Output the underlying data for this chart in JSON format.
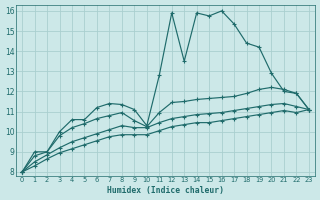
{
  "xlabel": "Humidex (Indice chaleur)",
  "ylabel": "",
  "xlim": [
    -0.5,
    23.5
  ],
  "ylim": [
    7.8,
    16.3
  ],
  "xtick_labels": [
    "0",
    "1",
    "2",
    "3",
    "4",
    "5",
    "6",
    "7",
    "8",
    "9",
    "10",
    "11",
    "12",
    "13",
    "14",
    "15",
    "16",
    "17",
    "18",
    "19",
    "20",
    "21",
    "22",
    "23"
  ],
  "yticks": [
    8,
    9,
    10,
    11,
    12,
    13,
    14,
    15,
    16
  ],
  "bg_color": "#cce8e8",
  "grid_color": "#aacfcf",
  "line_color": "#1f6b6b",
  "line1_x": [
    0,
    1,
    2,
    3,
    4,
    5,
    6,
    7,
    8,
    9,
    10,
    11,
    12,
    13,
    14,
    15,
    16,
    17,
    18,
    19,
    20,
    21,
    22,
    23
  ],
  "line1_y": [
    8.0,
    9.0,
    9.0,
    10.0,
    10.6,
    10.6,
    11.2,
    11.4,
    11.35,
    11.1,
    10.3,
    12.8,
    15.9,
    13.5,
    15.9,
    15.75,
    16.0,
    15.35,
    14.4,
    14.2,
    12.9,
    12.0,
    11.9,
    11.1
  ],
  "line2_x": [
    0,
    1,
    2,
    3,
    4,
    5,
    6,
    7,
    8,
    9,
    10,
    11,
    12,
    13,
    14,
    15,
    16,
    17,
    18,
    19,
    20,
    21,
    22,
    23
  ],
  "line2_y": [
    8.0,
    8.8,
    9.0,
    9.8,
    10.2,
    10.4,
    10.65,
    10.8,
    10.95,
    10.55,
    10.25,
    10.95,
    11.45,
    11.5,
    11.6,
    11.65,
    11.7,
    11.75,
    11.9,
    12.1,
    12.2,
    12.1,
    11.9,
    11.1
  ],
  "line3_x": [
    0,
    1,
    2,
    3,
    4,
    5,
    6,
    7,
    8,
    9,
    10,
    11,
    12,
    13,
    14,
    15,
    16,
    17,
    18,
    19,
    20,
    21,
    22,
    23
  ],
  "line3_y": [
    8.0,
    8.5,
    8.85,
    9.2,
    9.5,
    9.7,
    9.9,
    10.1,
    10.3,
    10.2,
    10.2,
    10.45,
    10.65,
    10.75,
    10.85,
    10.9,
    10.95,
    11.05,
    11.15,
    11.25,
    11.35,
    11.4,
    11.25,
    11.1
  ],
  "line4_x": [
    0,
    1,
    2,
    3,
    4,
    5,
    6,
    7,
    8,
    9,
    10,
    11,
    12,
    13,
    14,
    15,
    16,
    17,
    18,
    19,
    20,
    21,
    22,
    23
  ],
  "line4_y": [
    8.0,
    8.3,
    8.65,
    8.95,
    9.15,
    9.35,
    9.55,
    9.75,
    9.85,
    9.85,
    9.85,
    10.05,
    10.25,
    10.35,
    10.45,
    10.45,
    10.55,
    10.65,
    10.75,
    10.85,
    10.95,
    11.05,
    10.95,
    11.1
  ]
}
